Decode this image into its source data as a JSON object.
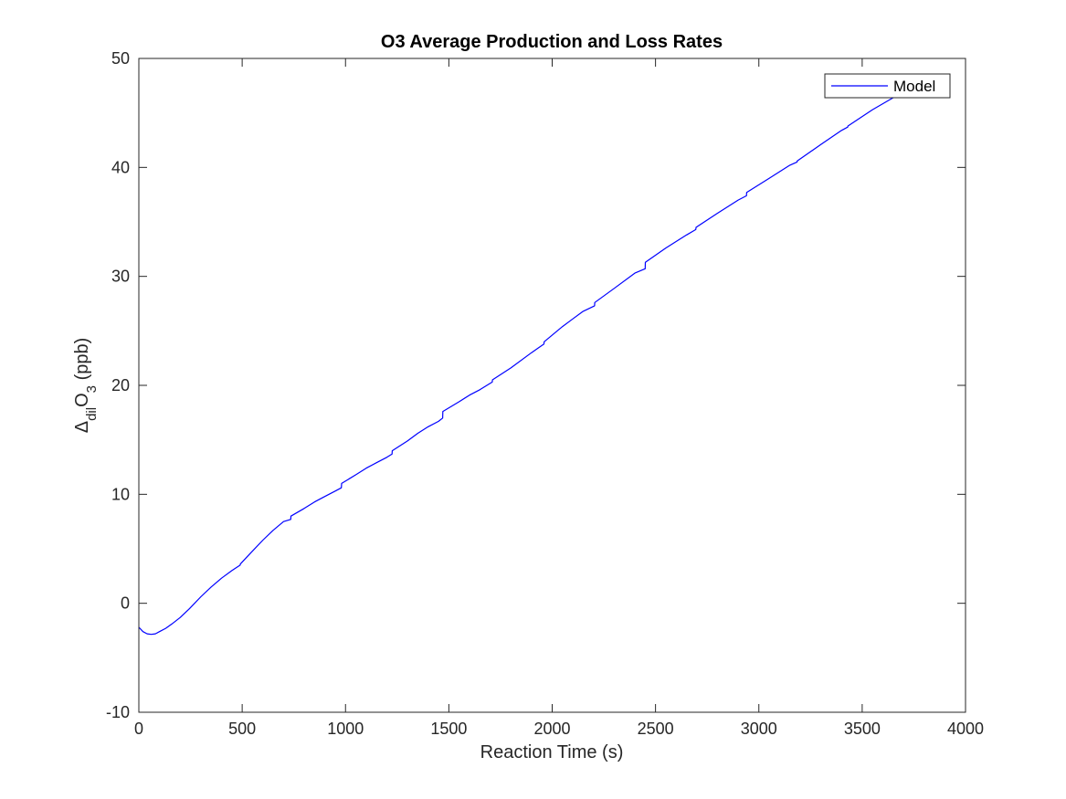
{
  "chart_data": {
    "type": "line",
    "title": "O3 Average Production and Loss Rates",
    "xlabel": "Reaction Time (s)",
    "ylabel": {
      "prefix": "Δ",
      "sub1": "dil",
      "main": "O",
      "sub2": "3",
      "suffix": " (ppb)"
    },
    "xlim": [
      0,
      4000
    ],
    "ylim": [
      -10,
      50
    ],
    "xticks": [
      0,
      500,
      1000,
      1500,
      2000,
      2500,
      3000,
      3500,
      4000
    ],
    "yticks": [
      -10,
      0,
      10,
      20,
      30,
      40,
      50
    ],
    "grid": false,
    "legend_position": "top-right",
    "colors": {
      "series": "#0000ff",
      "axes": "#262626"
    },
    "series": [
      {
        "name": "Model",
        "x": [
          0,
          20,
          40,
          60,
          80,
          100,
          130,
          160,
          200,
          245,
          300,
          350,
          400,
          450,
          490,
          491,
          540,
          600,
          650,
          700,
          735,
          736,
          800,
          850,
          900,
          950,
          980,
          981,
          1050,
          1100,
          1150,
          1200,
          1225,
          1226,
          1300,
          1350,
          1400,
          1450,
          1470,
          1471,
          1550,
          1600,
          1650,
          1710,
          1711,
          1800,
          1900,
          1960,
          1961,
          2050,
          2100,
          2150,
          2205,
          2206,
          2300,
          2400,
          2450,
          2451,
          2550,
          2650,
          2695,
          2696,
          2800,
          2900,
          2940,
          2941,
          3050,
          3150,
          3185,
          3186,
          3300,
          3400,
          3430,
          3431,
          3550,
          3650,
          3700
        ],
        "y": [
          -2.2,
          -2.6,
          -2.8,
          -2.85,
          -2.8,
          -2.6,
          -2.3,
          -1.9,
          -1.3,
          -0.5,
          0.6,
          1.5,
          2.3,
          3.0,
          3.5,
          3.6,
          4.6,
          5.8,
          6.7,
          7.5,
          7.7,
          8.0,
          8.7,
          9.3,
          9.8,
          10.3,
          10.6,
          11.0,
          11.8,
          12.4,
          12.9,
          13.4,
          13.7,
          14.0,
          14.9,
          15.6,
          16.2,
          16.7,
          17.0,
          17.6,
          18.5,
          19.1,
          19.6,
          20.3,
          20.5,
          21.6,
          23.0,
          23.8,
          24.0,
          25.4,
          26.1,
          26.8,
          27.3,
          27.6,
          28.9,
          30.3,
          30.7,
          31.3,
          32.6,
          33.8,
          34.3,
          34.5,
          35.8,
          37.0,
          37.4,
          37.7,
          39.0,
          40.2,
          40.5,
          40.6,
          42.1,
          43.4,
          43.7,
          43.8,
          45.3,
          46.4,
          47.0
        ]
      }
    ]
  }
}
